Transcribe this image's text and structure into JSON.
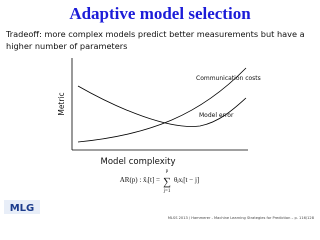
{
  "header": {
    "title": "Adaptive model selection"
  },
  "body": {
    "lines": [
      "Tradeoff: more complex models predict better measurements but have a",
      "higher number of parameters"
    ]
  },
  "figure": {
    "curves": [
      "Communication costs",
      "Model error"
    ],
    "y_label": "Metric",
    "x_label": "Model complexity"
  },
  "formula": {
    "lhs": "AR(p) : x̂ᵢ[t] =",
    "sum": "∑",
    "upper": "p",
    "lower": "j=1",
    "rhs": "θⱼxᵢ[t − j]"
  },
  "footer": {
    "logo": "MLG",
    "text": "MLSS 2013 / Hammerer - Machine Learning Strategies for Prediction – p. 116/128"
  }
}
